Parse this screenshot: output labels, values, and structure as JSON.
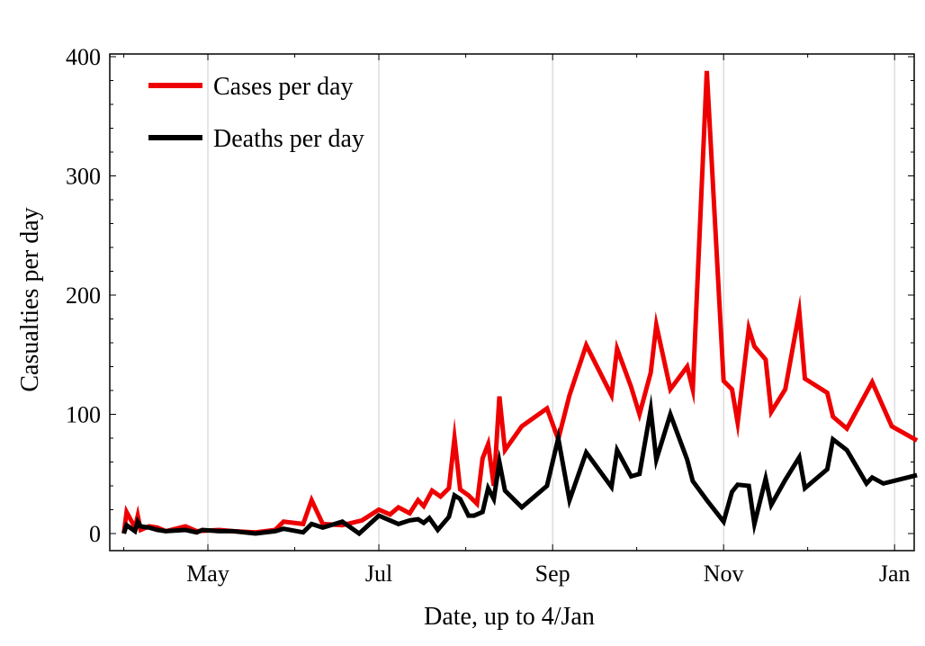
{
  "chart_data": {
    "type": "line",
    "title": "",
    "xlabel": "Date, up to 4/Jan",
    "ylabel": "Casualties per day",
    "ylim": [
      0,
      400
    ],
    "xlim": [
      "2020-03-27",
      "2021-01-08"
    ],
    "grid": "vertical",
    "legend": "top-left",
    "y_ticks": [
      0,
      100,
      200,
      300,
      400
    ],
    "x_ticks": [
      {
        "date": "2020-05-01",
        "label": "May"
      },
      {
        "date": "2020-07-01",
        "label": "Jul"
      },
      {
        "date": "2020-09-01",
        "label": "Sep"
      },
      {
        "date": "2020-11-01",
        "label": "Nov"
      },
      {
        "date": "2021-01-01",
        "label": "Jan"
      }
    ],
    "series": [
      {
        "name": "Cases per day",
        "color": "#ee0000",
        "points": [
          [
            "2020-04-01",
            0
          ],
          [
            "2020-04-02",
            18
          ],
          [
            "2020-04-05",
            5
          ],
          [
            "2020-04-06",
            15
          ],
          [
            "2020-04-07",
            3
          ],
          [
            "2020-04-10",
            6
          ],
          [
            "2020-04-13",
            5
          ],
          [
            "2020-04-16",
            2
          ],
          [
            "2020-04-23",
            6
          ],
          [
            "2020-04-27",
            2
          ],
          [
            "2020-05-05",
            3
          ],
          [
            "2020-05-10",
            2
          ],
          [
            "2020-05-18",
            1
          ],
          [
            "2020-05-25",
            3
          ],
          [
            "2020-05-28",
            10
          ],
          [
            "2020-06-04",
            8
          ],
          [
            "2020-06-07",
            28
          ],
          [
            "2020-06-11",
            8
          ],
          [
            "2020-06-18",
            7
          ],
          [
            "2020-06-25",
            11
          ],
          [
            "2020-07-01",
            20
          ],
          [
            "2020-07-05",
            16
          ],
          [
            "2020-07-08",
            22
          ],
          [
            "2020-07-12",
            17
          ],
          [
            "2020-07-15",
            28
          ],
          [
            "2020-07-17",
            23
          ],
          [
            "2020-07-20",
            36
          ],
          [
            "2020-07-23",
            31
          ],
          [
            "2020-07-26",
            38
          ],
          [
            "2020-07-28",
            80
          ],
          [
            "2020-07-30",
            37
          ],
          [
            "2020-08-02",
            32
          ],
          [
            "2020-08-05",
            25
          ],
          [
            "2020-08-07",
            63
          ],
          [
            "2020-08-09",
            75
          ],
          [
            "2020-08-11",
            40
          ],
          [
            "2020-08-13",
            115
          ],
          [
            "2020-08-15",
            70
          ],
          [
            "2020-08-21",
            90
          ],
          [
            "2020-08-30",
            105
          ],
          [
            "2020-09-03",
            79
          ],
          [
            "2020-09-07",
            116
          ],
          [
            "2020-09-13",
            158
          ],
          [
            "2020-09-22",
            116
          ],
          [
            "2020-09-24",
            155
          ],
          [
            "2020-09-29",
            123
          ],
          [
            "2020-10-02",
            100
          ],
          [
            "2020-10-06",
            135
          ],
          [
            "2020-10-08",
            175
          ],
          [
            "2020-10-13",
            121
          ],
          [
            "2020-10-19",
            140
          ],
          [
            "2020-10-21",
            121
          ],
          [
            "2020-10-26",
            388
          ],
          [
            "2020-11-01",
            128
          ],
          [
            "2020-11-04",
            121
          ],
          [
            "2020-11-06",
            93
          ],
          [
            "2020-11-10",
            172
          ],
          [
            "2020-11-12",
            157
          ],
          [
            "2020-11-16",
            146
          ],
          [
            "2020-11-18",
            102
          ],
          [
            "2020-11-23",
            121
          ],
          [
            "2020-11-28",
            186
          ],
          [
            "2020-11-30",
            130
          ],
          [
            "2020-12-08",
            118
          ],
          [
            "2020-12-10",
            98
          ],
          [
            "2020-12-15",
            88
          ],
          [
            "2020-12-24",
            127
          ],
          [
            "2020-12-31",
            90
          ],
          [
            "2021-01-09",
            78
          ]
        ]
      },
      {
        "name": "Deaths per day",
        "color": "#000000",
        "points": [
          [
            "2020-04-01",
            0
          ],
          [
            "2020-04-02",
            7
          ],
          [
            "2020-04-05",
            2
          ],
          [
            "2020-04-06",
            10
          ],
          [
            "2020-04-07",
            6
          ],
          [
            "2020-04-10",
            5
          ],
          [
            "2020-04-13",
            3
          ],
          [
            "2020-04-16",
            2
          ],
          [
            "2020-04-23",
            3
          ],
          [
            "2020-04-27",
            1
          ],
          [
            "2020-04-29",
            3
          ],
          [
            "2020-05-05",
            2
          ],
          [
            "2020-05-10",
            2
          ],
          [
            "2020-05-18",
            0
          ],
          [
            "2020-05-25",
            2
          ],
          [
            "2020-05-28",
            4
          ],
          [
            "2020-06-04",
            1
          ],
          [
            "2020-06-07",
            8
          ],
          [
            "2020-06-11",
            5
          ],
          [
            "2020-06-18",
            10
          ],
          [
            "2020-06-21",
            5
          ],
          [
            "2020-06-24",
            0
          ],
          [
            "2020-07-01",
            15
          ],
          [
            "2020-07-08",
            8
          ],
          [
            "2020-07-12",
            11
          ],
          [
            "2020-07-15",
            12
          ],
          [
            "2020-07-17",
            9
          ],
          [
            "2020-07-19",
            13
          ],
          [
            "2020-07-22",
            3
          ],
          [
            "2020-07-26",
            14
          ],
          [
            "2020-07-28",
            32
          ],
          [
            "2020-07-30",
            29
          ],
          [
            "2020-08-02",
            15
          ],
          [
            "2020-08-04",
            15
          ],
          [
            "2020-08-07",
            18
          ],
          [
            "2020-08-09",
            38
          ],
          [
            "2020-08-11",
            29
          ],
          [
            "2020-08-13",
            60
          ],
          [
            "2020-08-15",
            36
          ],
          [
            "2020-08-21",
            22
          ],
          [
            "2020-08-30",
            40
          ],
          [
            "2020-09-03",
            80
          ],
          [
            "2020-09-07",
            28
          ],
          [
            "2020-09-13",
            68
          ],
          [
            "2020-09-22",
            39
          ],
          [
            "2020-09-24",
            70
          ],
          [
            "2020-09-29",
            48
          ],
          [
            "2020-10-02",
            50
          ],
          [
            "2020-10-06",
            104
          ],
          [
            "2020-10-08",
            62
          ],
          [
            "2020-10-13",
            100
          ],
          [
            "2020-10-19",
            62
          ],
          [
            "2020-10-21",
            44
          ],
          [
            "2020-10-26",
            28
          ],
          [
            "2020-11-01",
            10
          ],
          [
            "2020-11-04",
            35
          ],
          [
            "2020-11-06",
            41
          ],
          [
            "2020-11-10",
            40
          ],
          [
            "2020-11-12",
            8
          ],
          [
            "2020-11-16",
            46
          ],
          [
            "2020-11-18",
            24
          ],
          [
            "2020-11-23",
            45
          ],
          [
            "2020-11-28",
            64
          ],
          [
            "2020-11-30",
            38
          ],
          [
            "2020-12-08",
            54
          ],
          [
            "2020-12-10",
            79
          ],
          [
            "2020-12-15",
            70
          ],
          [
            "2020-12-22",
            42
          ],
          [
            "2020-12-24",
            47
          ],
          [
            "2020-12-28",
            42
          ],
          [
            "2021-01-09",
            49
          ]
        ]
      }
    ]
  }
}
